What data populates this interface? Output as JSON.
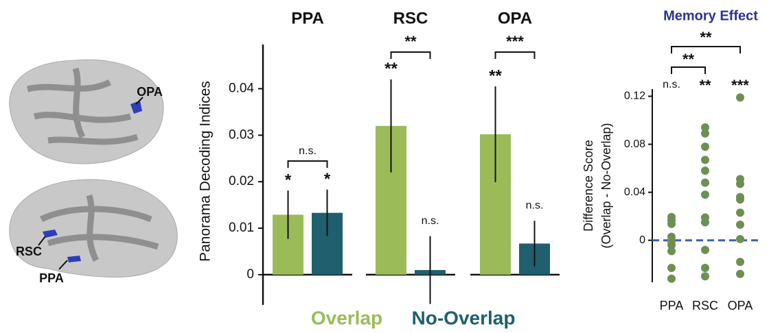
{
  "brain_labels": [
    "OPA",
    "RSC",
    "PPA"
  ],
  "chart_data": [
    {
      "type": "bar",
      "y_label": "Panorama Decoding Indices",
      "categories": [
        "PPA",
        "RSC",
        "OPA"
      ],
      "series": [
        {
          "name": "Overlap",
          "color": "#9bbb59",
          "values": [
            0.0129,
            0.032,
            0.0302
          ],
          "errors": [
            0.0052,
            0.01,
            0.0103
          ],
          "sig_labels": [
            "*",
            "**",
            "**"
          ]
        },
        {
          "name": "No-Overlap",
          "color": "#1f5f6e",
          "values": [
            0.0133,
            0.001,
            0.0067
          ],
          "errors": [
            0.005,
            0.0073,
            0.0049
          ],
          "sig_labels": [
            "*",
            "n.s.",
            "n.s."
          ]
        }
      ],
      "bracket_labels": [
        "n.s.",
        "**",
        "***"
      ],
      "ylim": [
        -0.0065,
        0.0495
      ],
      "yticks": [
        0,
        0.01,
        0.02,
        0.03,
        0.04
      ]
    },
    {
      "type": "strip",
      "title": "Memory Effect",
      "y_label": [
        "Difference Score",
        "(Overlap - No-Overlap)"
      ],
      "categories": [
        "PPA",
        "RSC",
        "OPA"
      ],
      "color": "#6e8f53",
      "zero_line_color": "#3a5fb8",
      "points": [
        [
          0.0194,
          0.0166,
          0.0137,
          0.0029,
          -0.0006,
          -0.004,
          -0.009,
          -0.023,
          -0.032
        ],
        [
          0.094,
          0.089,
          0.078,
          0.067,
          0.058,
          0.048,
          0.038,
          0.019,
          0.015,
          -0.008,
          -0.023,
          -0.03
        ],
        [
          0.119,
          0.051,
          0.047,
          0.036,
          0.034,
          0.023,
          0.013,
          0.001,
          -0.018,
          -0.028
        ]
      ],
      "sig_labels": [
        "n.s.",
        "**",
        "***"
      ],
      "bracket_labels": [
        "**",
        "**"
      ],
      "ylim": [
        -0.035,
        0.126
      ],
      "yticks": [
        0,
        0.04,
        0.08,
        0.12
      ]
    }
  ]
}
